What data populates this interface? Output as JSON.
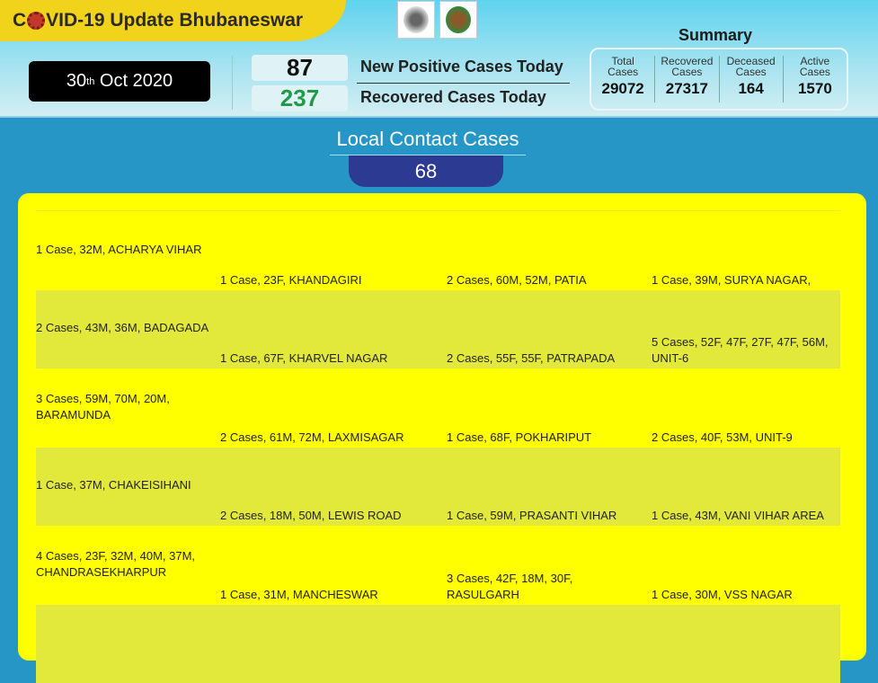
{
  "header": {
    "title_prefix": "C",
    "title_suffix": "VID-19 Update Bhubaneswar",
    "date_day": "30",
    "date_sup": "th",
    "date_rest": "Oct 2020",
    "new_positive": "87",
    "new_positive_label": "New Positive Cases Today",
    "recovered": "237",
    "recovered_label": "Recovered Cases Today",
    "colors": {
      "banner": "#f2d31b",
      "new_positive": "#111111",
      "recovered": "#1f9a4a"
    }
  },
  "summary": {
    "title": "Summary",
    "items": [
      {
        "label1": "Total",
        "label2": "Cases",
        "value": "29072"
      },
      {
        "label1": "Recovered",
        "label2": "Cases",
        "value": "27317"
      },
      {
        "label1": "Deceased",
        "label2": "Cases",
        "value": "164"
      },
      {
        "label1": "Active",
        "label2": "Cases",
        "value": "1570"
      }
    ]
  },
  "local_contact": {
    "title": "Local Contact Cases",
    "count": "68"
  },
  "rows": [
    [
      "1 Case, 32M, ACHARYA VIHAR",
      "1 Case, 23F, KHANDAGIRI",
      "2 Cases, 60M, 52M, PATIA",
      "1 Case, 39M, SURYA NAGAR,"
    ],
    [
      "2 Cases, 43M, 36M, BADAGADA",
      "1 Case, 67F, KHARVEL NAGAR",
      "2 Cases, 55F, 55F, PATRAPADA",
      "5 Cases, 52F, 47F, 27F, 47F, 56M, UNIT-6"
    ],
    [
      "3 Cases, 59M, 70M, 20M, BARAMUNDA",
      "2 Cases, 61M, 72M, LAXMISAGAR",
      "1 Case, 68F, POKHARIPUT",
      "2 Cases, 40F, 53M, UNIT-9"
    ],
    [
      "1 Case, 37M, CHAKEISIHANI",
      "2 Cases, 18M, 50M, LEWIS ROAD",
      "1 Case, 59M, PRASANTI VIHAR",
      "1 Case, 43M, VANI VIHAR AREA"
    ],
    [
      "4 Cases, 23F, 32M, 40M, 37M, CHANDRASEKHARPUR",
      "1 Case, 31M, MANCHESWAR",
      "3 Cases, 42F, 18M, 30F, RASULGARH",
      "1 Case, 30M, VSS NAGAR"
    ],
    [
      "",
      "",
      "",
      ""
    ]
  ]
}
